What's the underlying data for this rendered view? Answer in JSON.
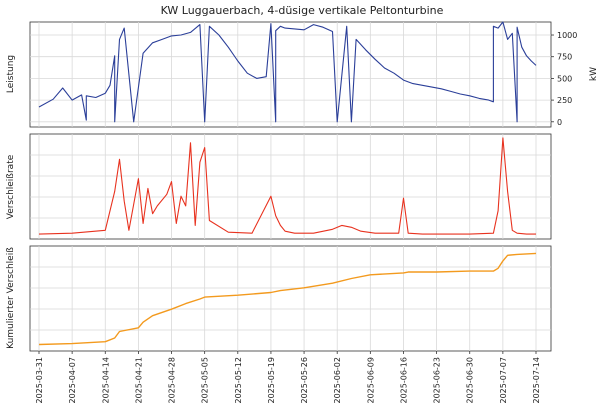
{
  "chart_data": [
    {
      "type": "line",
      "title": "KW Luggauerbach, 4-düsige vertikale Peltonturbine",
      "ylabel": "Leistung",
      "ylabel_right": "kW",
      "y_ticks": [
        0,
        250,
        500,
        750,
        1000
      ],
      "ylim": [
        -60,
        1150
      ],
      "grid": true,
      "series": [
        {
          "color": "#2b3f99",
          "x": [
            "2025-03-31",
            "2025-04-03",
            "2025-04-05",
            "2025-04-07",
            "2025-04-09",
            "2025-04-10",
            "2025-04-10",
            "2025-04-12",
            "2025-04-14",
            "2025-04-15",
            "2025-04-16",
            "2025-04-16",
            "2025-04-17",
            "2025-04-18",
            "2025-04-20",
            "2025-04-22",
            "2025-04-24",
            "2025-04-26",
            "2025-04-28",
            "2025-04-30",
            "2025-05-02",
            "2025-05-04",
            "2025-05-05",
            "2025-05-06",
            "2025-05-08",
            "2025-05-10",
            "2025-05-12",
            "2025-05-14",
            "2025-05-16",
            "2025-05-18",
            "2025-05-19",
            "2025-05-20",
            "2025-05-20",
            "2025-05-21",
            "2025-05-22",
            "2025-05-24",
            "2025-05-26",
            "2025-05-28",
            "2025-05-30",
            "2025-06-01",
            "2025-06-02",
            "2025-06-04",
            "2025-06-05",
            "2025-06-06",
            "2025-06-08",
            "2025-06-10",
            "2025-06-12",
            "2025-06-14",
            "2025-06-16",
            "2025-06-18",
            "2025-06-20",
            "2025-06-22",
            "2025-06-24",
            "2025-06-26",
            "2025-06-28",
            "2025-06-30",
            "2025-07-02",
            "2025-07-04",
            "2025-07-05",
            "2025-07-05",
            "2025-07-06",
            "2025-07-07",
            "2025-07-08",
            "2025-07-09",
            "2025-07-10",
            "2025-07-10",
            "2025-07-11",
            "2025-07-12",
            "2025-07-13",
            "2025-07-14"
          ],
          "y": [
            170,
            260,
            390,
            250,
            310,
            20,
            300,
            280,
            330,
            420,
            760,
            0,
            950,
            1080,
            0,
            790,
            910,
            950,
            990,
            1000,
            1030,
            1120,
            0,
            1100,
            1000,
            860,
            700,
            560,
            500,
            520,
            1130,
            0,
            1050,
            1100,
            1080,
            1070,
            1060,
            1120,
            1090,
            1040,
            0,
            1100,
            0,
            950,
            830,
            720,
            620,
            560,
            480,
            440,
            420,
            400,
            380,
            350,
            320,
            300,
            270,
            250,
            230,
            1100,
            1080,
            1150,
            950,
            1020,
            0,
            1090,
            860,
            760,
            700,
            650
          ]
        }
      ]
    },
    {
      "type": "line",
      "ylabel": "Verschleißrate",
      "grid": true,
      "series": [
        {
          "color": "#e8321f",
          "x": [
            "2025-03-31",
            "2025-04-07",
            "2025-04-14",
            "2025-04-16",
            "2025-04-17",
            "2025-04-18",
            "2025-04-19",
            "2025-04-21",
            "2025-04-22",
            "2025-04-23",
            "2025-04-24",
            "2025-04-25",
            "2025-04-27",
            "2025-04-28",
            "2025-04-29",
            "2025-04-30",
            "2025-05-01",
            "2025-05-02",
            "2025-05-03",
            "2025-05-04",
            "2025-05-05",
            "2025-05-06",
            "2025-05-10",
            "2025-05-15",
            "2025-05-19",
            "2025-05-20",
            "2025-05-21",
            "2025-05-22",
            "2025-05-24",
            "2025-05-28",
            "2025-06-01",
            "2025-06-03",
            "2025-06-05",
            "2025-06-07",
            "2025-06-10",
            "2025-06-15",
            "2025-06-16",
            "2025-06-17",
            "2025-06-20",
            "2025-06-30",
            "2025-07-05",
            "2025-07-06",
            "2025-07-07",
            "2025-07-08",
            "2025-07-09",
            "2025-07-10",
            "2025-07-12",
            "2025-07-14"
          ],
          "y": [
            0.01,
            0.02,
            0.05,
            0.45,
            0.78,
            0.35,
            0.05,
            0.58,
            0.12,
            0.48,
            0.22,
            0.3,
            0.42,
            0.55,
            0.12,
            0.4,
            0.3,
            0.95,
            0.1,
            0.75,
            0.9,
            0.15,
            0.03,
            0.02,
            0.4,
            0.2,
            0.1,
            0.04,
            0.02,
            0.02,
            0.06,
            0.1,
            0.08,
            0.04,
            0.02,
            0.02,
            0.38,
            0.02,
            0.01,
            0.01,
            0.02,
            0.25,
            1.0,
            0.45,
            0.05,
            0.02,
            0.01,
            0.01
          ]
        }
      ]
    },
    {
      "type": "line",
      "ylabel": "Kumulierter Verschleiß",
      "grid": true,
      "x_ticks": [
        "2025-03-31",
        "2025-04-07",
        "2025-04-14",
        "2025-04-21",
        "2025-04-28",
        "2025-05-05",
        "2025-05-12",
        "2025-05-19",
        "2025-05-26",
        "2025-06-02",
        "2025-06-09",
        "2025-06-16",
        "2025-06-23",
        "2025-06-30",
        "2025-07-07",
        "2025-07-14"
      ],
      "series": [
        {
          "color": "#f39a1e",
          "x": [
            "2025-03-31",
            "2025-04-07",
            "2025-04-14",
            "2025-04-16",
            "2025-04-17",
            "2025-04-21",
            "2025-04-22",
            "2025-04-24",
            "2025-04-28",
            "2025-05-01",
            "2025-05-04",
            "2025-05-05",
            "2025-05-12",
            "2025-05-19",
            "2025-05-21",
            "2025-05-26",
            "2025-06-01",
            "2025-06-05",
            "2025-06-09",
            "2025-06-16",
            "2025-06-17",
            "2025-06-23",
            "2025-06-30",
            "2025-07-05",
            "2025-07-06",
            "2025-07-07",
            "2025-07-08",
            "2025-07-10",
            "2025-07-14"
          ],
          "y": [
            0.0,
            0.01,
            0.03,
            0.07,
            0.14,
            0.18,
            0.24,
            0.31,
            0.38,
            0.44,
            0.49,
            0.51,
            0.53,
            0.56,
            0.58,
            0.61,
            0.66,
            0.71,
            0.75,
            0.77,
            0.78,
            0.78,
            0.79,
            0.79,
            0.82,
            0.9,
            0.96,
            0.97,
            0.98
          ]
        }
      ]
    }
  ]
}
